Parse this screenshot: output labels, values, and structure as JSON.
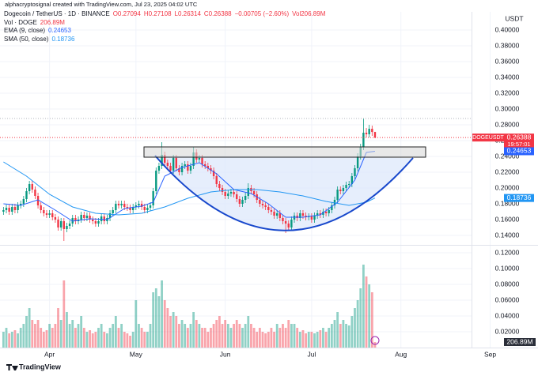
{
  "header": "alphacryptosignal created with TradingView.com, Jul 23, 2025 04:02 UTC",
  "footer": "TradingView",
  "chart_data": {
    "type": "candlestick",
    "symbol_title": "Dogecoin / TetherUS · 1D · BINANCE",
    "ohlc_legend": [
      "O0.27094",
      "H0.27108",
      "L0.26314",
      "C0.26388",
      "−0.00705 (−2.60%)",
      "Vol206.89M"
    ],
    "currency": "USDT",
    "symbol_tag": "DOGEUSDT",
    "countdown": "19:57:01",
    "up_color": "#089981",
    "down_color": "#f23645",
    "xlim": [
      -1.2,
      185.6
    ],
    "xticks": [
      {
        "value": 16,
        "label": "Apr"
      },
      {
        "value": 46,
        "label": "May"
      },
      {
        "value": 77,
        "label": "Jun"
      },
      {
        "value": 107,
        "label": "Jul"
      },
      {
        "value": 138,
        "label": "Aug"
      },
      {
        "value": 169,
        "label": "Sep"
      }
    ],
    "ylim": [
      0.128,
      0.423
    ],
    "yticks": [
      {
        "value": 0.14,
        "label": "0.14000"
      },
      {
        "value": 0.16,
        "label": "0.16000"
      },
      {
        "value": 0.18,
        "label": "0.18000"
      },
      {
        "value": 0.2,
        "label": "0.20000"
      },
      {
        "value": 0.22,
        "label": "0.22000"
      },
      {
        "value": 0.24,
        "label": "0.24000"
      },
      {
        "value": 0.26,
        "label": "0.26000"
      },
      {
        "value": 0.28,
        "label": "0.28000"
      },
      {
        "value": 0.3,
        "label": "0.30000"
      },
      {
        "value": 0.32,
        "label": "0.32000"
      },
      {
        "value": 0.34,
        "label": "0.34000"
      },
      {
        "value": 0.36,
        "label": "0.36000"
      },
      {
        "value": 0.38,
        "label": "0.38000"
      },
      {
        "value": 0.4,
        "label": "0.40000"
      }
    ],
    "grid": true,
    "open": [
      0.17,
      0.172,
      0.175,
      0.17,
      0.176,
      0.172,
      0.178,
      0.18,
      0.186,
      0.196,
      0.205,
      0.198,
      0.19,
      0.178,
      0.172,
      0.168,
      0.166,
      0.168,
      0.163,
      0.16,
      0.15,
      0.158,
      0.148,
      0.152,
      0.155,
      0.162,
      0.158,
      0.16,
      0.166,
      0.162,
      0.165,
      0.16,
      0.158,
      0.155,
      0.158,
      0.164,
      0.158,
      0.162,
      0.168,
      0.172,
      0.18,
      0.178,
      0.18,
      0.176,
      0.175,
      0.172,
      0.176,
      0.178,
      0.18,
      0.176,
      0.172,
      0.175,
      0.178,
      0.196,
      0.222,
      0.228,
      0.242,
      0.232,
      0.228,
      0.222,
      0.238,
      0.225,
      0.22,
      0.228,
      0.23,
      0.222,
      0.228,
      0.245,
      0.236,
      0.238,
      0.23,
      0.228,
      0.225,
      0.222,
      0.215,
      0.205,
      0.2,
      0.195,
      0.19,
      0.193,
      0.195,
      0.192,
      0.186,
      0.18,
      0.185,
      0.19,
      0.2,
      0.196,
      0.192,
      0.185,
      0.18,
      0.178,
      0.176,
      0.172,
      0.17,
      0.165,
      0.168,
      0.162,
      0.158,
      0.155,
      0.15,
      0.16,
      0.165,
      0.162,
      0.168,
      0.165,
      0.163,
      0.164,
      0.16,
      0.165,
      0.168,
      0.166,
      0.17,
      0.168,
      0.172,
      0.178,
      0.185,
      0.198,
      0.196,
      0.2,
      0.204,
      0.205,
      0.215,
      0.225,
      0.24,
      0.252,
      0.27,
      0.268,
      0.275,
      0.27094
    ],
    "high": [
      0.176,
      0.179,
      0.179,
      0.18,
      0.18,
      0.182,
      0.184,
      0.19,
      0.2,
      0.209,
      0.209,
      0.202,
      0.194,
      0.182,
      0.176,
      0.172,
      0.172,
      0.172,
      0.167,
      0.164,
      0.162,
      0.162,
      0.156,
      0.159,
      0.166,
      0.166,
      0.164,
      0.17,
      0.17,
      0.169,
      0.169,
      0.164,
      0.162,
      0.162,
      0.168,
      0.168,
      0.166,
      0.172,
      0.176,
      0.184,
      0.184,
      0.184,
      0.184,
      0.18,
      0.179,
      0.18,
      0.182,
      0.184,
      0.184,
      0.18,
      0.179,
      0.182,
      0.2,
      0.226,
      0.232,
      0.258,
      0.246,
      0.236,
      0.232,
      0.242,
      0.242,
      0.229,
      0.232,
      0.234,
      0.234,
      0.232,
      0.252,
      0.249,
      0.242,
      0.242,
      0.234,
      0.232,
      0.229,
      0.226,
      0.219,
      0.209,
      0.204,
      0.199,
      0.197,
      0.199,
      0.199,
      0.196,
      0.19,
      0.189,
      0.194,
      0.206,
      0.204,
      0.2,
      0.196,
      0.189,
      0.184,
      0.182,
      0.18,
      0.176,
      0.174,
      0.172,
      0.172,
      0.166,
      0.162,
      0.159,
      0.164,
      0.169,
      0.169,
      0.172,
      0.172,
      0.169,
      0.168,
      0.168,
      0.169,
      0.172,
      0.172,
      0.174,
      0.174,
      0.176,
      0.182,
      0.189,
      0.202,
      0.202,
      0.204,
      0.208,
      0.209,
      0.219,
      0.229,
      0.244,
      0.256,
      0.288,
      0.276,
      0.28,
      0.279,
      0.27108
    ],
    "low": [
      0.166,
      0.168,
      0.166,
      0.166,
      0.168,
      0.168,
      0.174,
      0.176,
      0.182,
      0.192,
      0.194,
      0.186,
      0.174,
      0.168,
      0.164,
      0.162,
      0.162,
      0.159,
      0.156,
      0.146,
      0.146,
      0.133,
      0.144,
      0.148,
      0.151,
      0.154,
      0.154,
      0.156,
      0.158,
      0.158,
      0.156,
      0.154,
      0.151,
      0.151,
      0.154,
      0.154,
      0.154,
      0.158,
      0.164,
      0.168,
      0.174,
      0.174,
      0.172,
      0.171,
      0.168,
      0.168,
      0.172,
      0.174,
      0.172,
      0.168,
      0.168,
      0.171,
      0.174,
      0.192,
      0.218,
      0.224,
      0.228,
      0.224,
      0.218,
      0.218,
      0.221,
      0.216,
      0.216,
      0.224,
      0.218,
      0.218,
      0.224,
      0.232,
      0.232,
      0.226,
      0.224,
      0.221,
      0.218,
      0.211,
      0.201,
      0.196,
      0.191,
      0.186,
      0.186,
      0.189,
      0.188,
      0.182,
      0.176,
      0.176,
      0.181,
      0.186,
      0.192,
      0.188,
      0.181,
      0.176,
      0.174,
      0.172,
      0.168,
      0.166,
      0.161,
      0.161,
      0.158,
      0.154,
      0.143,
      0.146,
      0.146,
      0.156,
      0.158,
      0.158,
      0.161,
      0.159,
      0.159,
      0.156,
      0.156,
      0.161,
      0.162,
      0.162,
      0.164,
      0.164,
      0.168,
      0.174,
      0.181,
      0.192,
      0.192,
      0.196,
      0.2,
      0.201,
      0.211,
      0.221,
      0.236,
      0.248,
      0.264,
      0.264,
      0.266,
      0.26314
    ],
    "close": [
      0.172,
      0.175,
      0.17,
      0.176,
      0.172,
      0.178,
      0.18,
      0.186,
      0.196,
      0.205,
      0.198,
      0.19,
      0.178,
      0.172,
      0.168,
      0.166,
      0.168,
      0.163,
      0.16,
      0.15,
      0.158,
      0.148,
      0.152,
      0.155,
      0.162,
      0.158,
      0.16,
      0.166,
      0.162,
      0.165,
      0.16,
      0.158,
      0.155,
      0.158,
      0.164,
      0.158,
      0.162,
      0.168,
      0.172,
      0.18,
      0.178,
      0.18,
      0.176,
      0.175,
      0.172,
      0.176,
      0.178,
      0.18,
      0.176,
      0.172,
      0.175,
      0.178,
      0.196,
      0.222,
      0.228,
      0.242,
      0.232,
      0.228,
      0.222,
      0.238,
      0.225,
      0.22,
      0.228,
      0.23,
      0.222,
      0.228,
      0.245,
      0.236,
      0.238,
      0.23,
      0.228,
      0.225,
      0.222,
      0.215,
      0.205,
      0.2,
      0.195,
      0.19,
      0.193,
      0.195,
      0.192,
      0.186,
      0.18,
      0.185,
      0.19,
      0.2,
      0.196,
      0.192,
      0.185,
      0.18,
      0.178,
      0.176,
      0.172,
      0.17,
      0.165,
      0.168,
      0.162,
      0.158,
      0.155,
      0.15,
      0.16,
      0.165,
      0.162,
      0.168,
      0.165,
      0.163,
      0.164,
      0.16,
      0.165,
      0.168,
      0.166,
      0.17,
      0.168,
      0.172,
      0.178,
      0.185,
      0.198,
      0.196,
      0.2,
      0.204,
      0.205,
      0.215,
      0.225,
      0.24,
      0.252,
      0.27,
      0.268,
      0.275,
      0.27094,
      0.26388
    ],
    "volume": {
      "name": "Vol · DOGE",
      "label": "206.89M",
      "ylim": [
        0,
        0.13
      ],
      "yticks": [
        {
          "value": 0.02,
          "label": "0.02000"
        },
        {
          "value": 0.04,
          "label": "0.04000"
        },
        {
          "value": 0.06,
          "label": "0.06000"
        },
        {
          "value": 0.08,
          "label": "0.08000"
        },
        {
          "value": 0.1,
          "label": "0.10000"
        },
        {
          "value": 0.12,
          "label": "0.12000"
        }
      ],
      "values": [
        0.02,
        0.025,
        0.018,
        0.02,
        0.022,
        0.018,
        0.025,
        0.03,
        0.04,
        0.05,
        0.035,
        0.03,
        0.035,
        0.025,
        0.02,
        0.022,
        0.03,
        0.025,
        0.03,
        0.05,
        0.035,
        0.085,
        0.045,
        0.03,
        0.035,
        0.025,
        0.03,
        0.04,
        0.025,
        0.02,
        0.022,
        0.018,
        0.02,
        0.025,
        0.03,
        0.02,
        0.018,
        0.025,
        0.03,
        0.04,
        0.025,
        0.03,
        0.02,
        0.018,
        0.015,
        0.02,
        0.06,
        0.03,
        0.025,
        0.02,
        0.02,
        0.03,
        0.07,
        0.075,
        0.065,
        0.085,
        0.06,
        0.05,
        0.04,
        0.045,
        0.04,
        0.03,
        0.035,
        0.03,
        0.025,
        0.03,
        0.045,
        0.035,
        0.03,
        0.025,
        0.025,
        0.02,
        0.025,
        0.03,
        0.035,
        0.04,
        0.03,
        0.035,
        0.03,
        0.025,
        0.03,
        0.035,
        0.03,
        0.025,
        0.03,
        0.04,
        0.03,
        0.025,
        0.02,
        0.025,
        0.02,
        0.018,
        0.02,
        0.025,
        0.02,
        0.03,
        0.025,
        0.03,
        0.025,
        0.035,
        0.03,
        0.03,
        0.025,
        0.02,
        0.022,
        0.018,
        0.02,
        0.02,
        0.018,
        0.02,
        0.022,
        0.025,
        0.02,
        0.025,
        0.03,
        0.035,
        0.045,
        0.03,
        0.035,
        0.03,
        0.028,
        0.04,
        0.05,
        0.06,
        0.075,
        0.105,
        0.09,
        0.08,
        0.07,
        0.007
      ]
    },
    "series": [
      {
        "name": "EMA (9, close)",
        "color": "#2962ff",
        "x": [
          0,
          6,
          12,
          18,
          24,
          30,
          36,
          42,
          48,
          52,
          56,
          62,
          68,
          74,
          80,
          86,
          92,
          98,
          104,
          110,
          116,
          122,
          126,
          129
        ],
        "values": [
          0.18,
          0.178,
          0.185,
          0.172,
          0.158,
          0.161,
          0.16,
          0.174,
          0.177,
          0.182,
          0.215,
          0.226,
          0.232,
          0.218,
          0.198,
          0.193,
          0.18,
          0.163,
          0.163,
          0.166,
          0.182,
          0.21,
          0.245,
          0.24653
        ]
      },
      {
        "name": "SMA (50, close)",
        "color": "#2196f3",
        "x": [
          0,
          8,
          16,
          24,
          32,
          40,
          48,
          56,
          64,
          72,
          80,
          88,
          96,
          104,
          112,
          120,
          126,
          129
        ],
        "values": [
          0.233,
          0.215,
          0.192,
          0.176,
          0.168,
          0.166,
          0.168,
          0.176,
          0.187,
          0.195,
          0.198,
          0.198,
          0.195,
          0.19,
          0.183,
          0.178,
          0.182,
          0.18736
        ]
      }
    ]
  }
}
